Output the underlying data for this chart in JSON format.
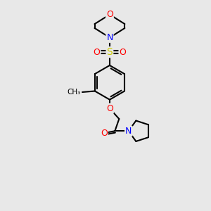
{
  "background_color": "#e8e8e8",
  "bond_color": "#000000",
  "atom_colors": {
    "O": "#ff0000",
    "N": "#0000ff",
    "S": "#cccc00",
    "C": "#000000"
  },
  "figsize": [
    3.0,
    3.0
  ],
  "dpi": 100
}
